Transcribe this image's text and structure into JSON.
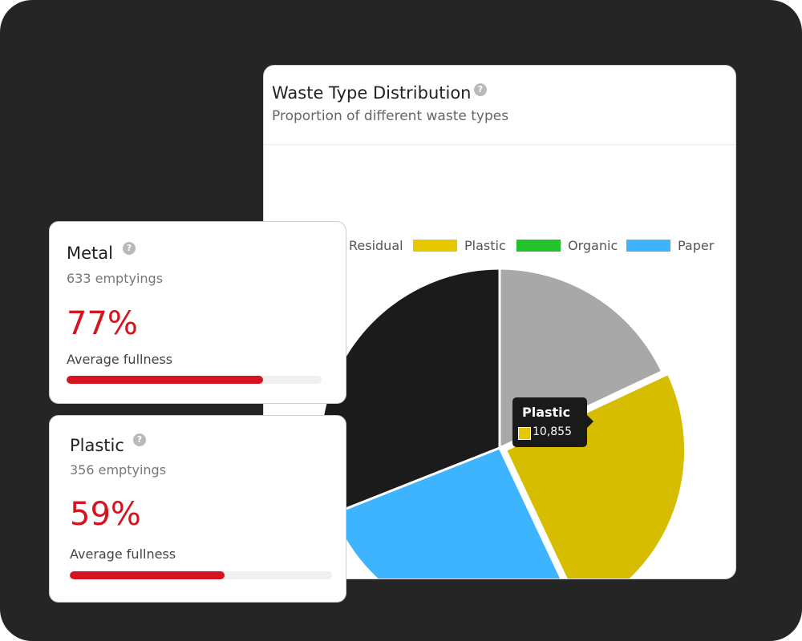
{
  "chart_card": {
    "title": "Waste Type Distribution",
    "subtitle": "Proportion of different waste types"
  },
  "tooltip": {
    "title": "Plastic",
    "value": "10,855"
  },
  "chart_data": {
    "type": "pie",
    "title": "Waste Type Distribution",
    "subtitle": "Proportion of different waste types",
    "legend_position": "top",
    "legend": [
      {
        "name": "Residual",
        "color": "#1b1b1b"
      },
      {
        "name": "Plastic",
        "color": "#e6c800"
      },
      {
        "name": "Organic",
        "color": "#22c22a"
      },
      {
        "name": "Paper",
        "color": "#3eb4ff"
      }
    ],
    "slices": [
      {
        "label": "",
        "value": 0.18,
        "color": "#a8a8a8"
      },
      {
        "label": "Plastic",
        "value": 0.25,
        "color": "#d6bd00",
        "exploded": true
      },
      {
        "label": "Paper",
        "value": 0.26,
        "color": "#3eb4ff"
      },
      {
        "label": "Residual",
        "value": 0.31,
        "color": "#1b1b1b"
      }
    ]
  },
  "cards": [
    {
      "name": "Metal",
      "count": "633 emptyings",
      "percent": "77%",
      "label": "Average fullness",
      "fill": 0.77
    },
    {
      "name": "Plastic",
      "count": "356 emptyings",
      "percent": "59%",
      "label": "Average fullness",
      "fill": 0.59
    }
  ],
  "colors": {
    "accent_red": "#d6141f",
    "help_icon": "#b9b9b9"
  }
}
